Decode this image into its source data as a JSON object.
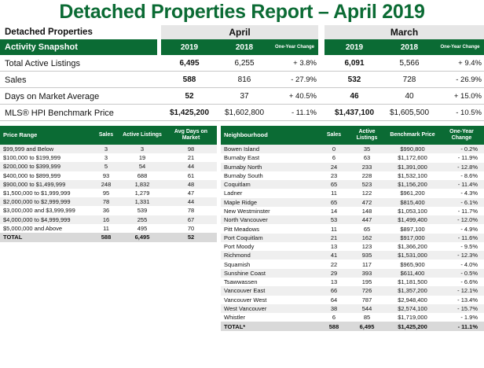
{
  "title": "Detached Properties Report – April 2019",
  "snapshot": {
    "section_label": "Detached Properties",
    "subheader_label": "Activity Snapshot",
    "months": {
      "current": "April",
      "previous": "March"
    },
    "columns": {
      "y2019": "2019",
      "y2018": "2018",
      "change": "One-Year Change"
    },
    "rows": [
      {
        "label": "Total Active Listings",
        "apr_2019": "6,495",
        "apr_2018": "6,255",
        "apr_change": "+ 3.8%",
        "mar_2019": "6,091",
        "mar_2018": "5,566",
        "mar_change": "+ 9.4%"
      },
      {
        "label": "Sales",
        "apr_2019": "588",
        "apr_2018": "816",
        "apr_change": "- 27.9%",
        "mar_2019": "532",
        "mar_2018": "728",
        "mar_change": "- 26.9%"
      },
      {
        "label": "Days on Market Average",
        "apr_2019": "52",
        "apr_2018": "37",
        "apr_change": "+ 40.5%",
        "mar_2019": "46",
        "mar_2018": "40",
        "mar_change": "+ 15.0%"
      },
      {
        "label": "MLS® HPI Benchmark Price",
        "apr_2019": "$1,425,200",
        "apr_2018": "$1,602,800",
        "apr_change": "- 11.1%",
        "mar_2019": "$1,437,100",
        "mar_2018": "$1,605,500",
        "mar_change": "- 10.5%"
      }
    ]
  },
  "price_table": {
    "headers": [
      "Price Range",
      "Sales",
      "Active Listings",
      "Avg Days on Market"
    ],
    "rows": [
      [
        "$99,999 and Below",
        "3",
        "3",
        "98"
      ],
      [
        "$100,000 to $199,999",
        "3",
        "19",
        "21"
      ],
      [
        "$200,000 to $399,999",
        "5",
        "54",
        "44"
      ],
      [
        "$400,000 to $899,999",
        "93",
        "688",
        "61"
      ],
      [
        "$900,000 to $1,499,999",
        "248",
        "1,832",
        "48"
      ],
      [
        "$1,500,000 to $1,999,999",
        "95",
        "1,279",
        "47"
      ],
      [
        "$2,000,000 to $2,999,999",
        "78",
        "1,331",
        "44"
      ],
      [
        "$3,000,000 and $3,999,999",
        "36",
        "539",
        "78"
      ],
      [
        "$4,000,000 to $4,999,999",
        "16",
        "255",
        "67"
      ],
      [
        "$5,000,000 and Above",
        "11",
        "495",
        "70"
      ]
    ],
    "total": [
      "TOTAL",
      "588",
      "6,495",
      "52"
    ]
  },
  "neighbourhood_table": {
    "headers": [
      "Neighbourhood",
      "Sales",
      "Active Listings",
      "Benchmark Price",
      "One-Year Change"
    ],
    "rows": [
      [
        "Bowen Island",
        "0",
        "35",
        "$990,800",
        "- 0.2%"
      ],
      [
        "Burnaby East",
        "6",
        "63",
        "$1,172,600",
        "- 11.9%"
      ],
      [
        "Burnaby North",
        "24",
        "233",
        "$1,391,000",
        "- 12.8%"
      ],
      [
        "Burnaby South",
        "23",
        "228",
        "$1,532,100",
        "- 8.6%"
      ],
      [
        "Coquitlam",
        "65",
        "523",
        "$1,156,200",
        "- 11.4%"
      ],
      [
        "Ladner",
        "11",
        "122",
        "$961,200",
        "- 4.3%"
      ],
      [
        "Maple Ridge",
        "65",
        "472",
        "$815,400",
        "- 6.1%"
      ],
      [
        "New Westminster",
        "14",
        "148",
        "$1,053,100",
        "- 11.7%"
      ],
      [
        "North Vancouver",
        "53",
        "447",
        "$1,499,400",
        "- 12.0%"
      ],
      [
        "Pitt Meadows",
        "11",
        "65",
        "$897,100",
        "- 4.9%"
      ],
      [
        "Port Coquitlam",
        "21",
        "162",
        "$917,000",
        "- 11.6%"
      ],
      [
        "Port Moody",
        "13",
        "123",
        "$1,366,200",
        "- 9.5%"
      ],
      [
        "Richmond",
        "41",
        "935",
        "$1,531,000",
        "- 12.3%"
      ],
      [
        "Squamish",
        "22",
        "117",
        "$965,900",
        "- 4.0%"
      ],
      [
        "Sunshine Coast",
        "29",
        "393",
        "$611,400",
        "- 0.5%"
      ],
      [
        "Tsawwassen",
        "13",
        "195",
        "$1,181,500",
        "- 6.6%"
      ],
      [
        "Vancouver East",
        "66",
        "726",
        "$1,357,200",
        "- 12.1%"
      ],
      [
        "Vancouver West",
        "64",
        "787",
        "$2,948,400",
        "- 13.4%"
      ],
      [
        "West Vancouver",
        "38",
        "544",
        "$2,574,100",
        "- 15.7%"
      ],
      [
        "Whistler",
        "6",
        "85",
        "$1,719,000",
        "- 1.9%"
      ]
    ],
    "total": [
      "TOTAL*",
      "588",
      "6,495",
      "$1,425,200",
      "- 11.1%"
    ]
  },
  "colors": {
    "brand_green": "#0b6b34",
    "month_band": "#e6e6e6",
    "row_stripe": "#efefef"
  }
}
